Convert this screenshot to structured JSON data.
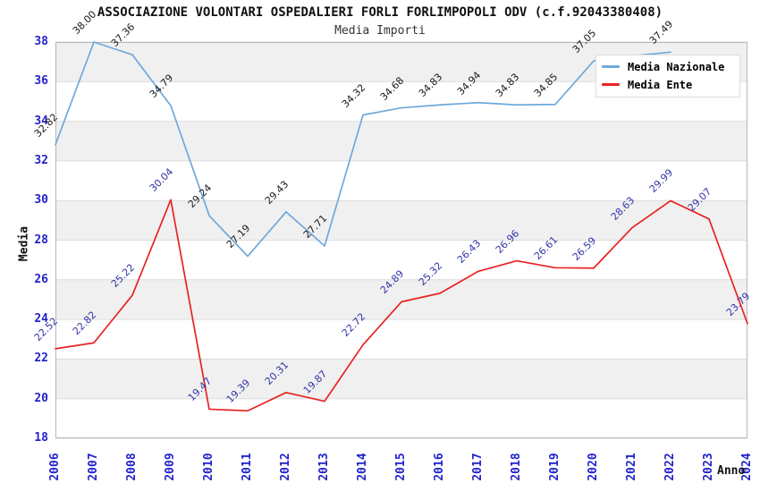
{
  "header": {
    "title": "ASSOCIAZIONE VOLONTARI OSPEDALIERI FORLI FORLIMPOPOLI ODV (c.f.92043380408)",
    "subtitle": "Media Importi"
  },
  "axes": {
    "y_title": "Media",
    "x_title": "Anno",
    "y_ticks": [
      38,
      36,
      34,
      32,
      30,
      28,
      26,
      24,
      22,
      20,
      18
    ],
    "x_ticks": [
      "2006",
      "2007",
      "2008",
      "2009",
      "2010",
      "2011",
      "2012",
      "2013",
      "2014",
      "2015",
      "2016",
      "2017",
      "2018",
      "2019",
      "2020",
      "2021",
      "2022",
      "2023",
      "2024"
    ],
    "tick_color": "#2323cc"
  },
  "legend": [
    {
      "label": "Media Nazionale",
      "color": "#6fa8dc"
    },
    {
      "label": "Media Ente",
      "color": "#e82222"
    }
  ],
  "chart_data": {
    "type": "line",
    "title": "ASSOCIAZIONE VOLONTARI OSPEDALIERI FORLI FORLIMPOPOLI ODV (c.f.92043380408)",
    "subtitle": "Media Importi",
    "xlabel": "Anno",
    "ylabel": "Media",
    "ylim": [
      18,
      38
    ],
    "grid": true,
    "legend_position": "top-right-inside",
    "categories": [
      2006,
      2007,
      2008,
      2009,
      2010,
      2011,
      2012,
      2013,
      2014,
      2015,
      2016,
      2017,
      2018,
      2019,
      2020,
      2021,
      2022,
      2023,
      2024
    ],
    "series": [
      {
        "name": "Media Nazionale",
        "color": "#6fa8dc",
        "label_color": "#1a1a1a",
        "values": [
          32.82,
          38.0,
          37.36,
          34.79,
          29.24,
          27.19,
          29.43,
          27.71,
          34.32,
          34.68,
          34.83,
          34.94,
          34.83,
          34.85,
          37.05,
          37.3,
          37.49,
          null,
          null
        ],
        "labels": [
          "32.82",
          "38.00",
          "37.36",
          "34.79",
          "29.24",
          "27.19",
          "29.43",
          "27.71",
          "34.32",
          "34.68",
          "34.83",
          "34.94",
          "34.83",
          "34.85",
          "37.05",
          "",
          "37.49",
          "",
          ""
        ]
      },
      {
        "name": "Media Ente",
        "color": "#e82222",
        "label_color": "#3333aa",
        "values": [
          22.52,
          22.82,
          25.22,
          30.04,
          19.47,
          19.39,
          20.31,
          19.87,
          22.72,
          24.89,
          25.32,
          26.43,
          26.96,
          26.61,
          26.59,
          28.63,
          29.99,
          29.07,
          23.79
        ],
        "labels": [
          "22.52",
          "22.82",
          "25.22",
          "30.04",
          "19.47",
          "19.39",
          "20.31",
          "19.87",
          "22.72",
          "24.89",
          "25.32",
          "26.43",
          "26.96",
          "26.61",
          "26.59",
          "28.63",
          "29.99",
          "29.07",
          "23.79"
        ]
      }
    ],
    "band_fill_a": "#f0f0f0",
    "band_fill_b": "#ffffff",
    "band_step": 2,
    "grid_color": "#dcdcdc",
    "border_color": "#b8b8b8"
  }
}
